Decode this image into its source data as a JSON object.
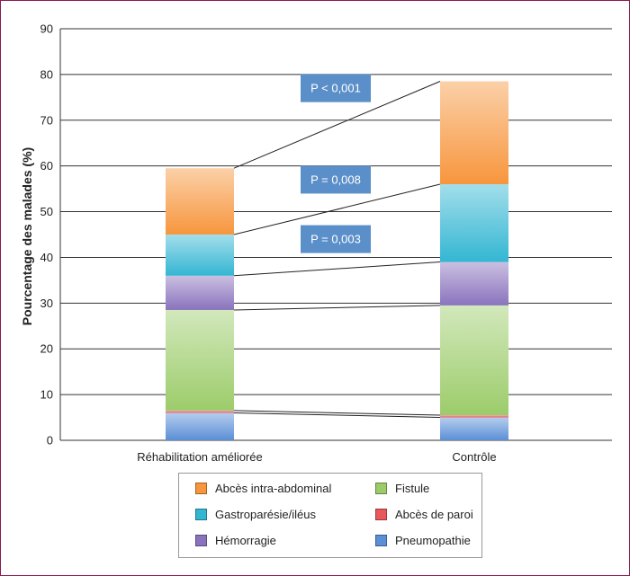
{
  "chart_data": {
    "type": "bar",
    "stacked": true,
    "categories": [
      "Réhabilitation améliorée",
      "Contrôle"
    ],
    "ylabel": "Pourcentage des malades (%)",
    "ylim": [
      0,
      90
    ],
    "yticks": [
      0,
      10,
      20,
      30,
      40,
      50,
      60,
      70,
      80,
      90
    ],
    "grid": true,
    "legend_position": "bottom",
    "series": [
      {
        "key": "pneumo",
        "name": "Pneumopathie",
        "color": "#5b8fd6",
        "values": [
          6.0,
          5.0
        ]
      },
      {
        "key": "paroi",
        "name": "Abcès de paroi",
        "color": "#e8585d",
        "values": [
          0.5,
          0.5
        ]
      },
      {
        "key": "fistule",
        "name": "Fistule",
        "color": "#9ccc6a",
        "values": [
          22.0,
          24.0
        ]
      },
      {
        "key": "hemo",
        "name": "Hémorragie",
        "color": "#8a73bd",
        "values": [
          7.5,
          9.5
        ]
      },
      {
        "key": "gastro",
        "name": "Gastroparésie/iléus",
        "color": "#33b6d2",
        "values": [
          9.0,
          17.0
        ]
      },
      {
        "key": "abces",
        "name": "Abcès intra-abdominal",
        "color": "#f7963d",
        "values": [
          14.5,
          22.5
        ]
      }
    ],
    "annotations": [
      {
        "text": "P < 0,001",
        "y_value": 77
      },
      {
        "text": "P = 0,008",
        "y_value": 57
      },
      {
        "text": "P = 0,003",
        "y_value": 44
      }
    ],
    "connector_color": "#222222",
    "annotation_color": "#5b8fc9"
  },
  "legend": {
    "items": [
      {
        "label": "Abcès intra-abdominal",
        "color": "#f7963d"
      },
      {
        "label": "Fistule",
        "color": "#9ccc6a"
      },
      {
        "label": "Gastroparésie/iléus",
        "color": "#33b6d2"
      },
      {
        "label": "Abcès de paroi",
        "color": "#e8585d"
      },
      {
        "label": "Hémorragie",
        "color": "#8a73bd"
      },
      {
        "label": "Pneumopathie",
        "color": "#5b8fd6"
      }
    ]
  }
}
